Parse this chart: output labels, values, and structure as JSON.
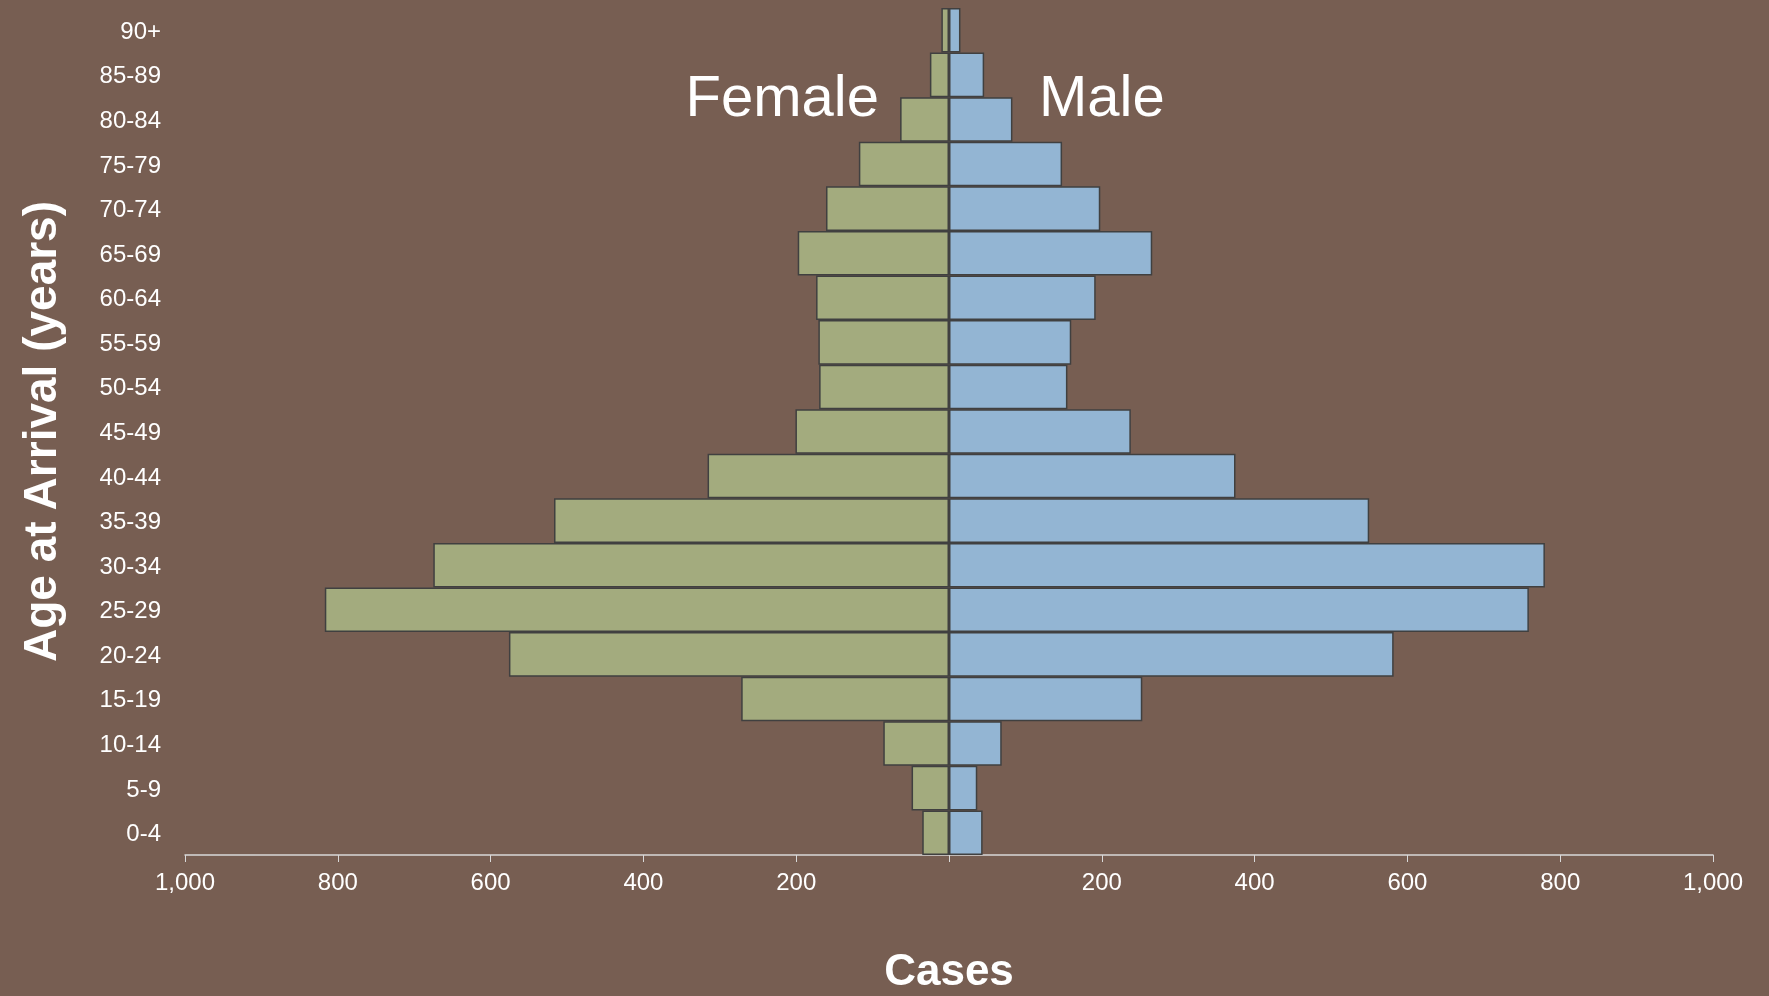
{
  "chart_data": {
    "type": "bar",
    "orientation": "horizontal",
    "xlabel": "Cases",
    "ylabel": "Age at Arrival (years)",
    "categories": [
      "90+",
      "85-89",
      "80-84",
      "75-79",
      "70-74",
      "65-69",
      "60-64",
      "55-59",
      "50-54",
      "45-49",
      "40-44",
      "35-39",
      "30-34",
      "25-29",
      "20-24",
      "15-19",
      "10-14",
      "5-9",
      "0-4"
    ],
    "series": [
      {
        "name": "Female",
        "color": "#a3ab7e",
        "values": [
          -10,
          -25,
          -64,
          -118,
          -161,
          -198,
          -174,
          -171,
          -170,
          -201,
          -316,
          -517,
          -675,
          -817,
          -576,
          -272,
          -86,
          -49,
          -35
        ]
      },
      {
        "name": "Male",
        "color": "#93b5d3",
        "values": [
          15,
          46,
          83,
          148,
          198,
          266,
          192,
          160,
          155,
          238,
          375,
          550,
          780,
          759,
          582,
          253,
          69,
          37,
          44
        ]
      }
    ],
    "xlim": [
      -1000,
      1000
    ],
    "xticks": [
      {
        "value": -1000,
        "label": "1,000"
      },
      {
        "value": -800,
        "label": "800"
      },
      {
        "value": -600,
        "label": "600"
      },
      {
        "value": -400,
        "label": "400"
      },
      {
        "value": -200,
        "label": "200"
      },
      {
        "value": 0,
        "label": null
      },
      {
        "value": 200,
        "label": "200"
      },
      {
        "value": 400,
        "label": "400"
      },
      {
        "value": 600,
        "label": "600"
      },
      {
        "value": 800,
        "label": "800"
      },
      {
        "value": 1000,
        "label": "1,000"
      }
    ],
    "grid": false,
    "legend": false,
    "stacked": true
  }
}
